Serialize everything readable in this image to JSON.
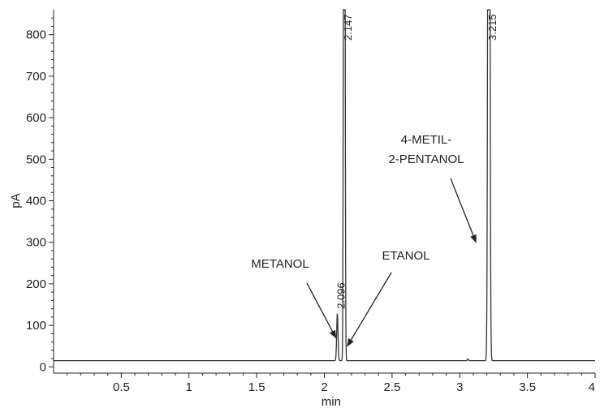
{
  "chart_data": {
    "type": "line",
    "xlabel": "min",
    "ylabel": "pA",
    "xlim": [
      0,
      4
    ],
    "ylim": [
      -15,
      860
    ],
    "x_ticks": [
      0.5,
      1,
      1.5,
      2,
      2.5,
      3,
      3.5,
      4
    ],
    "x_tick_labels": [
      "0.5",
      "1",
      "1.5",
      "2",
      "2.5",
      "3",
      "3.5",
      "4"
    ],
    "y_ticks": [
      0,
      100,
      200,
      300,
      400,
      500,
      600,
      700,
      800
    ],
    "y_tick_labels": [
      "0",
      "100",
      "200",
      "300",
      "400",
      "500",
      "600",
      "700",
      "800"
    ],
    "baseline": 15,
    "grid": false,
    "peaks": [
      {
        "rt": 2.096,
        "height": 128,
        "label": "2.096"
      },
      {
        "rt": 2.147,
        "height": 860,
        "label": "2.147"
      },
      {
        "rt": 3.215,
        "height": 860,
        "label": "3.215"
      }
    ],
    "annotations": [
      {
        "lines": [
          "METANOL"
        ],
        "target": [
          2.085,
          70
        ]
      },
      {
        "lines": [
          "ETANOL"
        ],
        "target": [
          2.17,
          50
        ]
      },
      {
        "lines": [
          "4-METIL-",
          "2-PENTANOL"
        ],
        "target": [
          3.12,
          300
        ]
      }
    ],
    "color": "#333333"
  }
}
